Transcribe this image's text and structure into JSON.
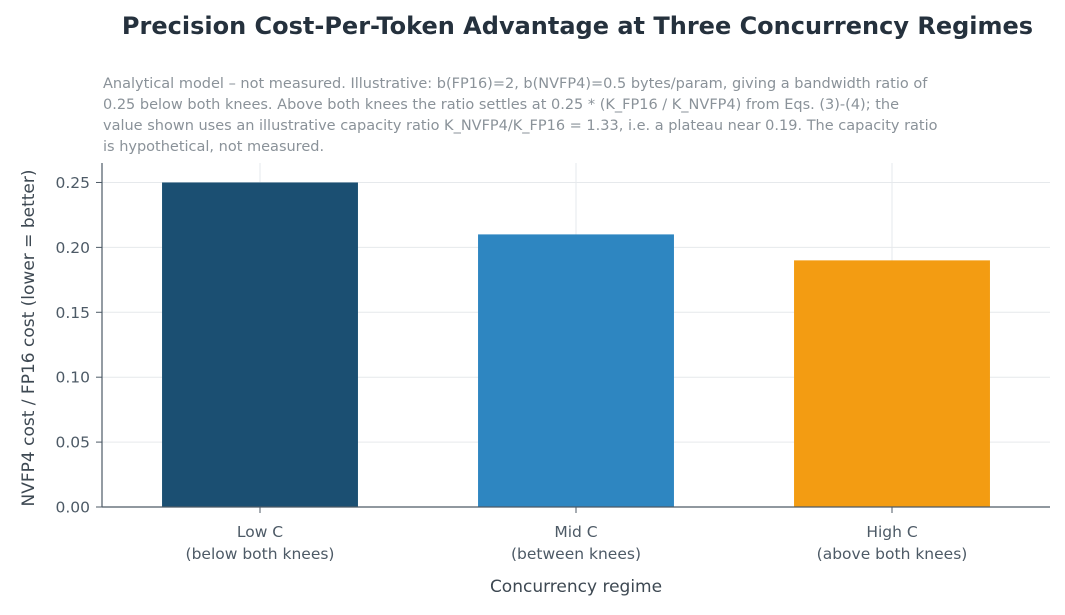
{
  "chart_data": {
    "type": "bar",
    "title": "Precision Cost-Per-Token Advantage at Three Concurrency Regimes",
    "subtitle": "Analytical model – not measured. Illustrative: b(FP16)=2, b(NVFP4)=0.5 bytes/param, giving a bandwidth ratio of 0.25 below both knees. Above both knees the ratio settles at 0.25 * (K_FP16 / K_NVFP4) from Eqs. (3)-(4); the value shown uses an illustrative capacity ratio K_NVFP4/K_FP16 = 1.33, i.e. a plateau near 0.19. The capacity ratio is hypothetical, not measured.",
    "categories": [
      [
        "Low C",
        "(below both knees)"
      ],
      [
        "Mid C",
        "(between knees)"
      ],
      [
        "High C",
        "(above both knees)"
      ]
    ],
    "values": [
      0.25,
      0.21,
      0.19
    ],
    "colors": [
      "#1b4f72",
      "#2e86c1",
      "#f39c12"
    ],
    "xlabel": "Concurrency regime",
    "ylabel": "NVFP4 cost / FP16 cost (lower = better)",
    "ylim": [
      0,
      0.265
    ],
    "yticks": [
      "0.00",
      "0.05",
      "0.10",
      "0.15",
      "0.20",
      "0.25"
    ],
    "grid": true,
    "legend": "none"
  }
}
